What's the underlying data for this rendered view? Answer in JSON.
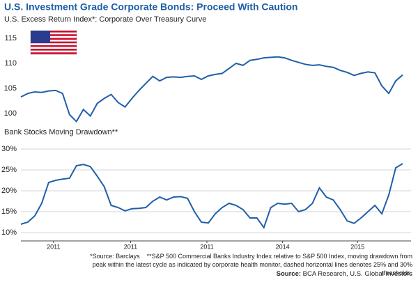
{
  "title": "U.S. Investment Grade Corporate Bonds: Proceed With Caution",
  "notes": [
    "*Source: Barclays",
    "**S&P 500 Commercial Banks Industry Index relative to S&P 500 Index, moving drawdown from peak within the latest cycle as indicated by corporate health monitor, dashed horizontal lines denotes 25% and 30% thresholds."
  ],
  "source": {
    "label": "Source:",
    "text": "BCA Research, U.S. Global Investors"
  },
  "chart_data": [
    {
      "type": "line",
      "title": "U.S. Excess Return Index*: Corporate Over Treasury Curve",
      "color": "#1f5fa8",
      "grid": false,
      "ylim": [
        97,
        117
      ],
      "yticks": [
        100,
        105,
        110,
        115
      ],
      "xlim": [
        0,
        55
      ],
      "values": [
        103.3,
        104.0,
        104.3,
        104.2,
        104.5,
        104.6,
        104.0,
        99.8,
        98.4,
        100.8,
        99.5,
        102,
        103,
        103.8,
        102.2,
        101.3,
        103,
        104.6,
        106,
        107.4,
        106.5,
        107.2,
        107.3,
        107.2,
        107.4,
        107.5,
        106.8,
        107.5,
        107.8,
        108,
        109,
        110,
        109.6,
        110.6,
        110.8,
        111.1,
        111.2,
        111.3,
        111.1,
        110.6,
        110.2,
        109.8,
        109.6,
        109.7,
        109.4,
        109.2,
        108.6,
        108.2,
        107.6,
        108,
        108.3,
        108.1,
        105.5,
        104,
        106.5,
        107.7
      ]
    },
    {
      "type": "line",
      "title": "Bank Stocks Moving Drawdown**",
      "color": "#1f5fa8",
      "grid": true,
      "ylim": [
        8,
        32
      ],
      "yticks": [
        {
          "value": 10,
          "label": "10%"
        },
        {
          "value": 15,
          "label": "15%"
        },
        {
          "value": 20,
          "label": "20%"
        },
        {
          "value": 25,
          "label": "25%"
        },
        {
          "value": 30,
          "label": "30%"
        }
      ],
      "xlim": [
        0,
        55
      ],
      "xticks": [
        {
          "value": 4.7,
          "label": "2011"
        },
        {
          "value": 15.8,
          "label": "2011"
        },
        {
          "value": 26.8,
          "label": "2011"
        },
        {
          "value": 37.7,
          "label": "2014"
        },
        {
          "value": 48.5,
          "label": "2015"
        }
      ],
      "values": [
        12,
        12.5,
        14,
        17,
        22,
        22.5,
        22.8,
        23,
        26,
        26.3,
        25.8,
        23.5,
        21,
        16.5,
        16,
        15.2,
        15.7,
        15.8,
        16,
        17.5,
        18.5,
        17.8,
        18.5,
        18.6,
        18.2,
        15,
        12.5,
        12.3,
        14.5,
        16,
        17,
        16.5,
        15.5,
        13.5,
        13.5,
        11.2,
        16,
        17,
        16.8,
        17,
        15,
        15.5,
        17,
        20.7,
        18.5,
        17.8,
        15.5,
        12.8,
        12.2,
        13.5,
        15,
        16.5,
        14.5,
        19,
        25.5,
        26.5
      ]
    }
  ]
}
